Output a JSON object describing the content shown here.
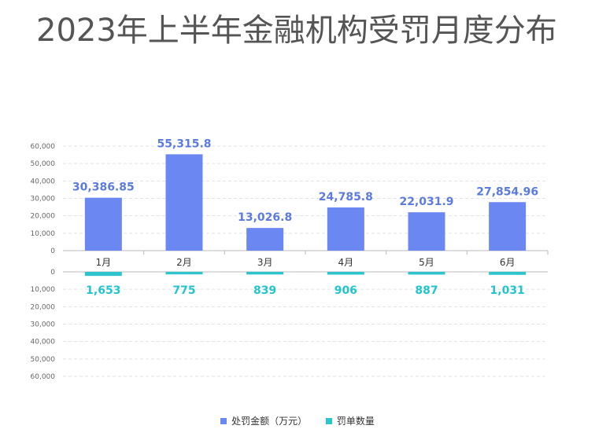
{
  "title": "2023年上半年金融机构受罚月度分布",
  "chart_data": {
    "type": "bar",
    "title": "2023年上半年金融机构受罚月度分布",
    "categories": [
      "1月",
      "2月",
      "3月",
      "4月",
      "5月",
      "6月"
    ],
    "series": [
      {
        "name": "处罚金额（万元）",
        "color": "#6b87f2",
        "label_color": "#5b7be0",
        "values": [
          30386.85,
          55315.8,
          13026.8,
          24785.8,
          22031.9,
          27854.96
        ],
        "labels": [
          "30,386.85",
          "55,315.8",
          "13,026.8",
          "24,785.8",
          "22,031.9",
          "27,854.96"
        ]
      },
      {
        "name": "罚单数量",
        "color": "#2ec4cc",
        "label_color": "#22c5cf",
        "values": [
          1653,
          775,
          839,
          906,
          887,
          1031
        ],
        "labels": [
          "1,653",
          "775",
          "839",
          "906",
          "887",
          "1,031"
        ]
      }
    ],
    "ylim": [
      0,
      60000
    ],
    "yticks": [
      "0",
      "10,000",
      "20,000",
      "30,000",
      "40,000",
      "50,000",
      "60,000"
    ],
    "layout": "mirrored panels: upper panel bars up, lower panel bars down (inverted axis)",
    "grid": true,
    "legend_position": "bottom"
  }
}
